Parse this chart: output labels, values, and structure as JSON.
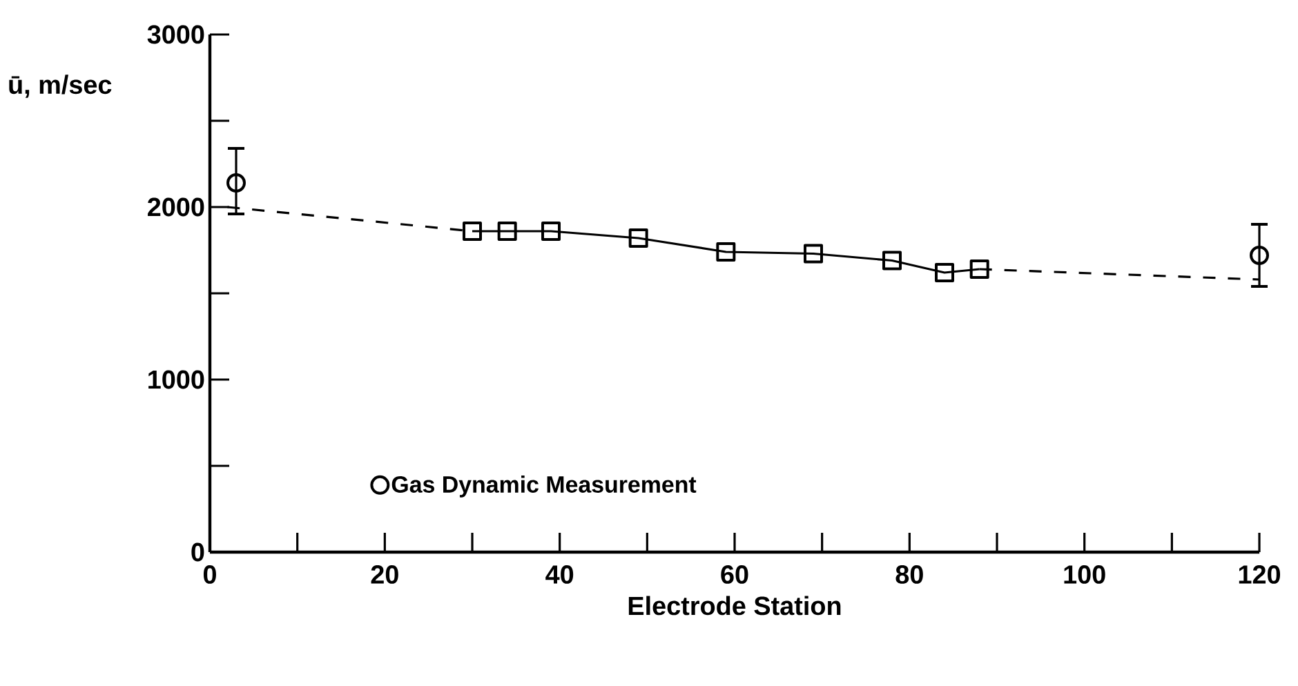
{
  "chart_data": {
    "type": "line",
    "xlabel": "Electrode Station",
    "ylabel": "ū, m/sec",
    "xlim": [
      0,
      120
    ],
    "ylim": [
      0,
      3000
    ],
    "xticks": [
      0,
      {
        "value": 10,
        "label": null
      },
      20,
      {
        "value": 30,
        "label": null
      },
      40,
      {
        "value": 50,
        "label": null
      },
      60,
      {
        "value": 70,
        "label": null
      },
      80,
      {
        "value": 90,
        "label": null
      },
      100,
      {
        "value": 110,
        "label": null
      },
      120
    ],
    "yticks": [
      0,
      {
        "value": 500,
        "label": null
      },
      1000,
      {
        "value": 1500,
        "label": null
      },
      2000,
      {
        "value": 2500,
        "label": null
      },
      3000
    ],
    "grid": false,
    "legend": "bottom left",
    "series": [
      {
        "name": "Gas Dynamic Measurement",
        "type": "scatter",
        "color": "#000000",
        "marker": "circle",
        "x": [
          3,
          120
        ],
        "values": [
          2140,
          1720
        ],
        "errors": [
          [
            1960,
            2340
          ],
          [
            1540,
            1900
          ]
        ]
      },
      {
        "type": "line",
        "color": "#000000",
        "marker": "square",
        "line_style": "solid",
        "x": [
          30,
          34,
          39,
          49,
          59,
          69,
          78,
          84,
          88
        ],
        "values": [
          1860,
          1860,
          1860,
          1820,
          1740,
          1730,
          1690,
          1620,
          1640
        ]
      },
      {
        "type": "line",
        "color": "#000000",
        "marker": "none",
        "line_style": "dashed",
        "x": [
          2,
          30
        ],
        "values": [
          2000,
          1860
        ]
      },
      {
        "type": "line",
        "color": "#000000",
        "marker": "none",
        "line_style": "dashed",
        "x": [
          88,
          120
        ],
        "values": [
          1640,
          1580
        ]
      }
    ]
  }
}
